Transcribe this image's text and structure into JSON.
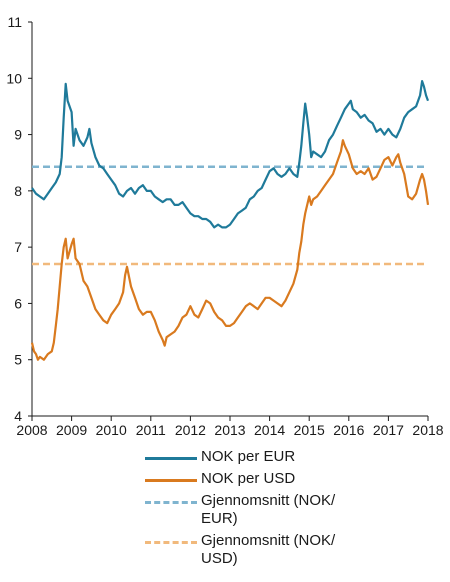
{
  "chart_data": {
    "type": "line",
    "ylim": [
      4,
      11
    ],
    "xlim": [
      2008,
      2018
    ],
    "x_ticks": [
      "2008",
      "2009",
      "2010",
      "2011",
      "2012",
      "2013",
      "2014",
      "2015",
      "2016",
      "2017",
      "2018"
    ],
    "y_ticks": [
      "4",
      "5",
      "6",
      "7",
      "8",
      "9",
      "10",
      "11"
    ],
    "grid": false,
    "legend_position": "bottom",
    "series": [
      {
        "name": "NOK per EUR",
        "color": "#1f7a9a",
        "style": "solid",
        "points": [
          [
            2008.0,
            8.05
          ],
          [
            2008.1,
            7.95
          ],
          [
            2008.2,
            7.9
          ],
          [
            2008.3,
            7.85
          ],
          [
            2008.4,
            7.95
          ],
          [
            2008.5,
            8.05
          ],
          [
            2008.6,
            8.15
          ],
          [
            2008.7,
            8.3
          ],
          [
            2008.75,
            8.6
          ],
          [
            2008.8,
            9.3
          ],
          [
            2008.85,
            9.9
          ],
          [
            2008.9,
            9.6
          ],
          [
            2009.0,
            9.4
          ],
          [
            2009.05,
            8.8
          ],
          [
            2009.1,
            9.1
          ],
          [
            2009.2,
            8.9
          ],
          [
            2009.3,
            8.8
          ],
          [
            2009.4,
            8.95
          ],
          [
            2009.45,
            9.1
          ],
          [
            2009.5,
            8.85
          ],
          [
            2009.6,
            8.6
          ],
          [
            2009.7,
            8.45
          ],
          [
            2009.8,
            8.4
          ],
          [
            2009.9,
            8.3
          ],
          [
            2010.0,
            8.2
          ],
          [
            2010.1,
            8.1
          ],
          [
            2010.2,
            7.95
          ],
          [
            2010.3,
            7.9
          ],
          [
            2010.4,
            8.0
          ],
          [
            2010.5,
            8.05
          ],
          [
            2010.6,
            7.95
          ],
          [
            2010.7,
            8.05
          ],
          [
            2010.8,
            8.1
          ],
          [
            2010.9,
            8.0
          ],
          [
            2011.0,
            8.0
          ],
          [
            2011.1,
            7.9
          ],
          [
            2011.2,
            7.85
          ],
          [
            2011.3,
            7.8
          ],
          [
            2011.4,
            7.85
          ],
          [
            2011.5,
            7.85
          ],
          [
            2011.6,
            7.75
          ],
          [
            2011.7,
            7.75
          ],
          [
            2011.8,
            7.8
          ],
          [
            2011.9,
            7.7
          ],
          [
            2012.0,
            7.6
          ],
          [
            2012.1,
            7.55
          ],
          [
            2012.2,
            7.55
          ],
          [
            2012.3,
            7.5
          ],
          [
            2012.4,
            7.5
          ],
          [
            2012.5,
            7.45
          ],
          [
            2012.6,
            7.35
          ],
          [
            2012.7,
            7.4
          ],
          [
            2012.8,
            7.35
          ],
          [
            2012.9,
            7.35
          ],
          [
            2013.0,
            7.4
          ],
          [
            2013.1,
            7.5
          ],
          [
            2013.2,
            7.6
          ],
          [
            2013.3,
            7.65
          ],
          [
            2013.4,
            7.7
          ],
          [
            2013.5,
            7.85
          ],
          [
            2013.6,
            7.9
          ],
          [
            2013.7,
            8.0
          ],
          [
            2013.8,
            8.05
          ],
          [
            2013.9,
            8.2
          ],
          [
            2014.0,
            8.35
          ],
          [
            2014.1,
            8.4
          ],
          [
            2014.2,
            8.3
          ],
          [
            2014.3,
            8.25
          ],
          [
            2014.4,
            8.3
          ],
          [
            2014.5,
            8.4
          ],
          [
            2014.6,
            8.3
          ],
          [
            2014.7,
            8.25
          ],
          [
            2014.75,
            8.5
          ],
          [
            2014.8,
            8.8
          ],
          [
            2014.85,
            9.2
          ],
          [
            2014.9,
            9.55
          ],
          [
            2014.95,
            9.3
          ],
          [
            2015.0,
            9.0
          ],
          [
            2015.05,
            8.6
          ],
          [
            2015.1,
            8.7
          ],
          [
            2015.2,
            8.65
          ],
          [
            2015.3,
            8.6
          ],
          [
            2015.4,
            8.7
          ],
          [
            2015.5,
            8.9
          ],
          [
            2015.6,
            9.0
          ],
          [
            2015.7,
            9.15
          ],
          [
            2015.8,
            9.3
          ],
          [
            2015.9,
            9.45
          ],
          [
            2016.0,
            9.55
          ],
          [
            2016.05,
            9.6
          ],
          [
            2016.1,
            9.45
          ],
          [
            2016.2,
            9.4
          ],
          [
            2016.3,
            9.3
          ],
          [
            2016.4,
            9.35
          ],
          [
            2016.5,
            9.25
          ],
          [
            2016.6,
            9.2
          ],
          [
            2016.7,
            9.05
          ],
          [
            2016.8,
            9.1
          ],
          [
            2016.9,
            9.0
          ],
          [
            2017.0,
            9.1
          ],
          [
            2017.1,
            9.0
          ],
          [
            2017.2,
            8.95
          ],
          [
            2017.3,
            9.1
          ],
          [
            2017.4,
            9.3
          ],
          [
            2017.5,
            9.4
          ],
          [
            2017.6,
            9.45
          ],
          [
            2017.7,
            9.5
          ],
          [
            2017.8,
            9.7
          ],
          [
            2017.85,
            9.95
          ],
          [
            2017.9,
            9.85
          ],
          [
            2017.95,
            9.7
          ],
          [
            2018.0,
            9.6
          ]
        ]
      },
      {
        "name": "NOK per USD",
        "color": "#d97a1f",
        "style": "solid",
        "points": [
          [
            2008.0,
            5.3
          ],
          [
            2008.05,
            5.15
          ],
          [
            2008.1,
            5.1
          ],
          [
            2008.15,
            5.0
          ],
          [
            2008.2,
            5.05
          ],
          [
            2008.3,
            5.0
          ],
          [
            2008.4,
            5.1
          ],
          [
            2008.5,
            5.15
          ],
          [
            2008.55,
            5.3
          ],
          [
            2008.6,
            5.6
          ],
          [
            2008.65,
            5.9
          ],
          [
            2008.7,
            6.3
          ],
          [
            2008.75,
            6.7
          ],
          [
            2008.8,
            7.0
          ],
          [
            2008.85,
            7.15
          ],
          [
            2008.9,
            6.8
          ],
          [
            2009.0,
            7.05
          ],
          [
            2009.05,
            7.15
          ],
          [
            2009.1,
            6.8
          ],
          [
            2009.2,
            6.7
          ],
          [
            2009.3,
            6.4
          ],
          [
            2009.4,
            6.3
          ],
          [
            2009.5,
            6.1
          ],
          [
            2009.6,
            5.9
          ],
          [
            2009.7,
            5.8
          ],
          [
            2009.8,
            5.7
          ],
          [
            2009.9,
            5.65
          ],
          [
            2010.0,
            5.8
          ],
          [
            2010.1,
            5.9
          ],
          [
            2010.2,
            6.0
          ],
          [
            2010.3,
            6.2
          ],
          [
            2010.35,
            6.5
          ],
          [
            2010.4,
            6.65
          ],
          [
            2010.5,
            6.3
          ],
          [
            2010.6,
            6.1
          ],
          [
            2010.7,
            5.9
          ],
          [
            2010.8,
            5.8
          ],
          [
            2010.9,
            5.85
          ],
          [
            2011.0,
            5.85
          ],
          [
            2011.1,
            5.7
          ],
          [
            2011.2,
            5.5
          ],
          [
            2011.3,
            5.35
          ],
          [
            2011.35,
            5.25
          ],
          [
            2011.4,
            5.4
          ],
          [
            2011.5,
            5.45
          ],
          [
            2011.6,
            5.5
          ],
          [
            2011.7,
            5.6
          ],
          [
            2011.8,
            5.75
          ],
          [
            2011.9,
            5.8
          ],
          [
            2012.0,
            5.95
          ],
          [
            2012.1,
            5.8
          ],
          [
            2012.2,
            5.75
          ],
          [
            2012.3,
            5.9
          ],
          [
            2012.4,
            6.05
          ],
          [
            2012.5,
            6.0
          ],
          [
            2012.6,
            5.85
          ],
          [
            2012.7,
            5.75
          ],
          [
            2012.8,
            5.7
          ],
          [
            2012.9,
            5.6
          ],
          [
            2013.0,
            5.6
          ],
          [
            2013.1,
            5.65
          ],
          [
            2013.2,
            5.75
          ],
          [
            2013.3,
            5.85
          ],
          [
            2013.4,
            5.95
          ],
          [
            2013.5,
            6.0
          ],
          [
            2013.6,
            5.95
          ],
          [
            2013.7,
            5.9
          ],
          [
            2013.8,
            6.0
          ],
          [
            2013.9,
            6.1
          ],
          [
            2014.0,
            6.1
          ],
          [
            2014.1,
            6.05
          ],
          [
            2014.2,
            6.0
          ],
          [
            2014.3,
            5.95
          ],
          [
            2014.4,
            6.05
          ],
          [
            2014.5,
            6.2
          ],
          [
            2014.6,
            6.35
          ],
          [
            2014.7,
            6.6
          ],
          [
            2014.75,
            6.9
          ],
          [
            2014.8,
            7.1
          ],
          [
            2014.85,
            7.4
          ],
          [
            2014.9,
            7.6
          ],
          [
            2014.95,
            7.75
          ],
          [
            2015.0,
            7.9
          ],
          [
            2015.05,
            7.75
          ],
          [
            2015.1,
            7.85
          ],
          [
            2015.2,
            7.9
          ],
          [
            2015.3,
            8.0
          ],
          [
            2015.4,
            8.1
          ],
          [
            2015.5,
            8.2
          ],
          [
            2015.6,
            8.3
          ],
          [
            2015.7,
            8.5
          ],
          [
            2015.8,
            8.7
          ],
          [
            2015.85,
            8.9
          ],
          [
            2015.9,
            8.8
          ],
          [
            2016.0,
            8.65
          ],
          [
            2016.1,
            8.4
          ],
          [
            2016.2,
            8.3
          ],
          [
            2016.3,
            8.35
          ],
          [
            2016.4,
            8.3
          ],
          [
            2016.5,
            8.4
          ],
          [
            2016.6,
            8.2
          ],
          [
            2016.7,
            8.25
          ],
          [
            2016.8,
            8.4
          ],
          [
            2016.9,
            8.55
          ],
          [
            2017.0,
            8.6
          ],
          [
            2017.1,
            8.45
          ],
          [
            2017.2,
            8.6
          ],
          [
            2017.25,
            8.65
          ],
          [
            2017.3,
            8.5
          ],
          [
            2017.4,
            8.3
          ],
          [
            2017.45,
            8.1
          ],
          [
            2017.5,
            7.9
          ],
          [
            2017.6,
            7.85
          ],
          [
            2017.7,
            7.95
          ],
          [
            2017.8,
            8.2
          ],
          [
            2017.85,
            8.3
          ],
          [
            2017.9,
            8.2
          ],
          [
            2017.95,
            8.0
          ],
          [
            2018.0,
            7.75
          ]
        ]
      },
      {
        "name": "Gjennomsnitt (NOK/\nEUR)",
        "color": "#7fb4cf",
        "style": "dashed",
        "points": [
          [
            2008.0,
            8.43
          ],
          [
            2018.0,
            8.43
          ]
        ]
      },
      {
        "name": "Gjennomsnitt (NOK/\nUSD)",
        "color": "#f1b97c",
        "style": "dashed",
        "points": [
          [
            2008.0,
            6.7
          ],
          [
            2018.0,
            6.7
          ]
        ]
      }
    ]
  }
}
